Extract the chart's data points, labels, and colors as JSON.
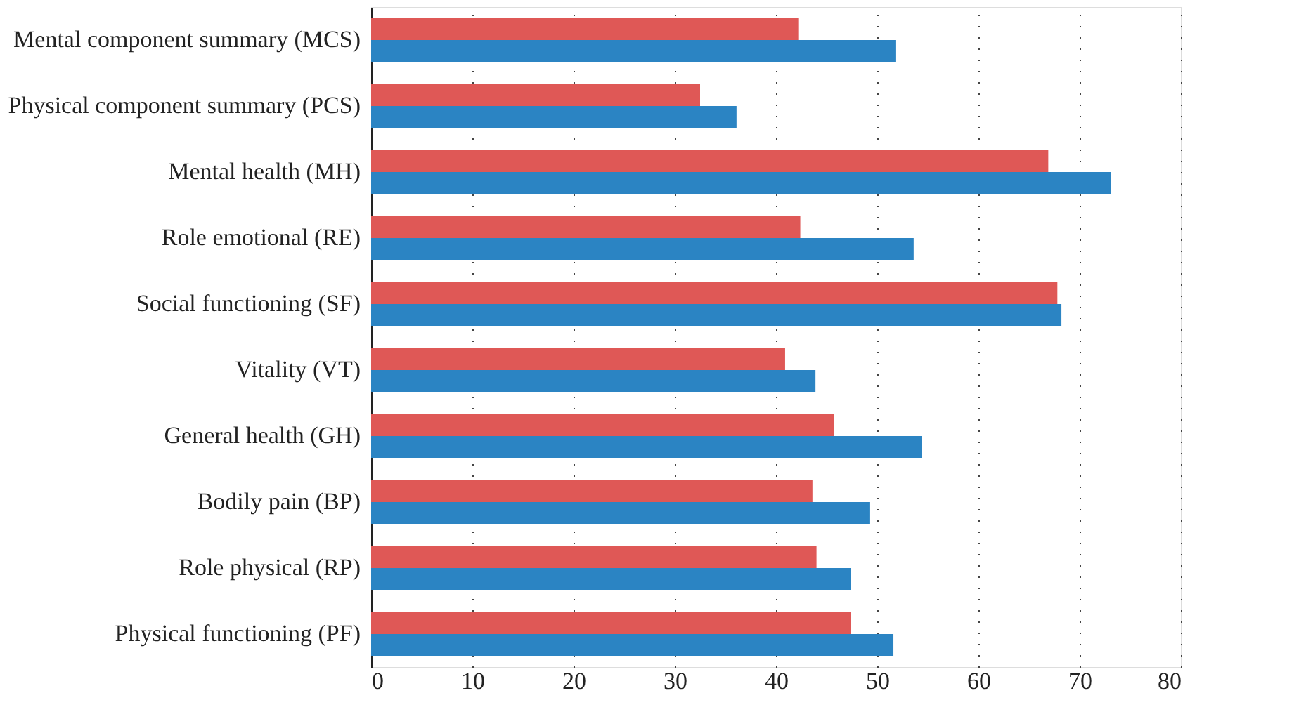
{
  "chart_data": {
    "type": "bar",
    "orientation": "horizontal",
    "categories": [
      "Mental component summary (MCS)",
      "Physical component summary (PCS)",
      "Mental health (MH)",
      "Role emotional (RE)",
      "Social functioning (SF)",
      "Vitality (VT)",
      "General health (GH)",
      "Bodily pain (BP)",
      "Role physical (RP)",
      "Physical functioning (PF)"
    ],
    "series": [
      {
        "color": "#df5856",
        "values": [
          42.2,
          32.5,
          66.9,
          42.4,
          67.8,
          40.9,
          45.7,
          43.6,
          44.0,
          47.4
        ]
      },
      {
        "color": "#2b84c3",
        "values": [
          51.8,
          36.1,
          73.1,
          53.6,
          68.2,
          43.9,
          54.4,
          49.3,
          47.4,
          51.6
        ]
      }
    ],
    "xlim": [
      0,
      80
    ],
    "xticks": [
      0,
      10,
      20,
      30,
      40,
      50,
      60,
      70,
      80
    ],
    "grid": "x",
    "legend": false
  }
}
